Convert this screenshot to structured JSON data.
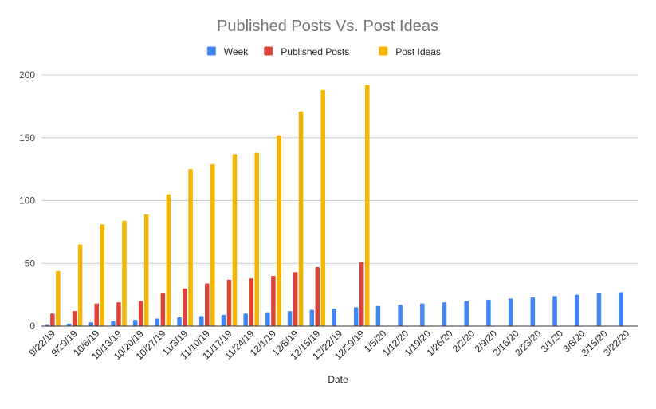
{
  "chart_data": {
    "type": "bar",
    "title": "Published Posts Vs. Post Ideas",
    "xlabel": "Date",
    "ylabel": "",
    "ylim": [
      0,
      200
    ],
    "yticks": [
      0,
      50,
      100,
      150,
      200
    ],
    "grid": true,
    "legend_position": "top-center",
    "categories": [
      "9/22/19",
      "9/29/19",
      "10/6/19",
      "10/13/19",
      "10/20/19",
      "10/27/19",
      "11/3/19",
      "11/10/19",
      "11/17/19",
      "11/24/19",
      "12/1/19",
      "12/8/19",
      "12/15/19",
      "12/22/19",
      "12/29/19",
      "1/5/20",
      "1/12/20",
      "1/19/20",
      "1/26/20",
      "2/2/20",
      "2/9/20",
      "2/16/20",
      "2/23/20",
      "3/1/20",
      "3/8/20",
      "3/15/20",
      "3/22/20"
    ],
    "series": [
      {
        "name": "Week",
        "color": "#4285f4",
        "values": [
          1,
          2,
          3,
          4,
          5,
          6,
          7,
          8,
          9,
          10,
          11,
          12,
          13,
          14,
          15,
          16,
          17,
          18,
          19,
          20,
          21,
          22,
          23,
          24,
          25,
          26,
          27
        ]
      },
      {
        "name": "Published Posts",
        "color": "#db4437",
        "values": [
          10,
          12,
          18,
          19,
          20,
          26,
          30,
          34,
          37,
          38,
          40,
          43,
          47,
          null,
          51,
          null,
          null,
          null,
          null,
          null,
          null,
          null,
          null,
          null,
          null,
          null,
          null
        ]
      },
      {
        "name": "Post Ideas",
        "color": "#f4b400",
        "values": [
          44,
          65,
          81,
          84,
          89,
          105,
          125,
          129,
          137,
          138,
          152,
          171,
          188,
          null,
          192,
          null,
          null,
          null,
          null,
          null,
          null,
          null,
          null,
          null,
          null,
          null,
          null
        ]
      }
    ]
  }
}
